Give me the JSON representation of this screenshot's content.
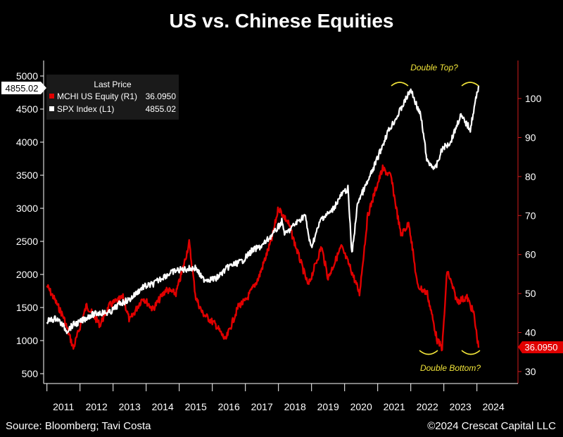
{
  "chart_data": {
    "type": "line",
    "title": "US vs. Chinese Equities",
    "x_ticks": [
      "2011",
      "2012",
      "2013",
      "2014",
      "2015",
      "2016",
      "2017",
      "2018",
      "2019",
      "2020",
      "2021",
      "2022",
      "2023",
      "2024"
    ],
    "left_axis": {
      "ticks": [
        500,
        1000,
        1500,
        2000,
        2500,
        3000,
        3500,
        4000,
        4500,
        5000
      ],
      "ylim": [
        500,
        5000
      ]
    },
    "right_axis": {
      "ticks": [
        30,
        40,
        50,
        60,
        70,
        80,
        90,
        100
      ],
      "ylim": [
        30,
        100
      ]
    },
    "grid": false,
    "legend": {
      "header": "Last Price",
      "placement": "top-left",
      "entries": [
        {
          "label": "MCHI US Equity  (R1)",
          "value": "36.0950",
          "color": "#e00000"
        },
        {
          "label": "SPX Index  (L1)",
          "value": "4855.02",
          "color": "#ffffff"
        }
      ]
    },
    "last_value_tags": {
      "left": "4855.02",
      "right": "36.0950"
    },
    "series": [
      {
        "name": "SPX Index  (L1)",
        "axis": "left",
        "color": "#ffffff",
        "x": [
          2011.0,
          2011.3,
          2011.6,
          2011.8,
          2012.0,
          2012.3,
          2012.6,
          2012.9,
          2013.2,
          2013.5,
          2013.9,
          2014.2,
          2014.5,
          2014.9,
          2015.2,
          2015.5,
          2015.7,
          2016.1,
          2016.5,
          2016.9,
          2017.2,
          2017.5,
          2017.9,
          2018.1,
          2018.2,
          2018.5,
          2018.8,
          2018.98,
          2019.3,
          2019.6,
          2019.9,
          2020.1,
          2020.22,
          2020.4,
          2020.7,
          2020.95,
          2021.3,
          2021.6,
          2021.9,
          2022.0,
          2022.3,
          2022.5,
          2022.75,
          2022.95,
          2023.2,
          2023.5,
          2023.8,
          2023.95,
          2024.05
        ],
        "values": [
          1290,
          1340,
          1150,
          1240,
          1280,
          1380,
          1420,
          1420,
          1560,
          1620,
          1810,
          1850,
          1960,
          2060,
          2080,
          2100,
          1930,
          1930,
          2120,
          2200,
          2360,
          2430,
          2650,
          2800,
          2600,
          2760,
          2900,
          2400,
          2850,
          2950,
          3200,
          3300,
          2300,
          3100,
          3400,
          3700,
          4150,
          4400,
          4700,
          4790,
          4400,
          3700,
          3600,
          3900,
          4000,
          4400,
          4200,
          4600,
          4855
        ]
      },
      {
        "name": "MCHI US Equity  (R1)",
        "axis": "right",
        "color": "#e00000",
        "x": [
          2011.0,
          2011.2,
          2011.5,
          2011.8,
          2012.2,
          2012.6,
          2012.9,
          2013.3,
          2013.5,
          2013.9,
          2014.2,
          2014.6,
          2014.9,
          2015.1,
          2015.3,
          2015.5,
          2015.7,
          2016.1,
          2016.4,
          2016.8,
          2017.0,
          2017.4,
          2017.8,
          2018.0,
          2018.3,
          2018.6,
          2018.9,
          2019.3,
          2019.5,
          2019.9,
          2020.2,
          2020.45,
          2020.7,
          2020.95,
          2021.15,
          2021.4,
          2021.7,
          2021.95,
          2022.2,
          2022.5,
          2022.8,
          2022.95,
          2023.1,
          2023.4,
          2023.7,
          2023.9,
          2024.05
        ],
        "values": [
          52,
          49,
          44,
          36,
          47,
          42,
          47,
          49,
          43,
          49,
          46,
          51,
          50,
          56,
          63,
          49,
          45,
          42,
          38,
          47,
          48,
          54,
          64,
          72,
          68,
          60,
          52,
          62,
          54,
          62,
          56,
          50,
          70,
          77,
          82,
          80,
          65,
          68,
          52,
          50,
          38,
          36,
          56,
          48,
          49,
          45,
          36.1
        ]
      }
    ],
    "annotations": [
      {
        "text": "Double Top?",
        "near": "2021-2024 highs of SPX"
      },
      {
        "text": "Double Bottom?",
        "near": "2022-2024 lows of MCHI"
      }
    ]
  },
  "footer": {
    "source": "Source: Bloomberg; Tavi Costa",
    "copyright": "©2024 Crescat Capital LLC"
  }
}
